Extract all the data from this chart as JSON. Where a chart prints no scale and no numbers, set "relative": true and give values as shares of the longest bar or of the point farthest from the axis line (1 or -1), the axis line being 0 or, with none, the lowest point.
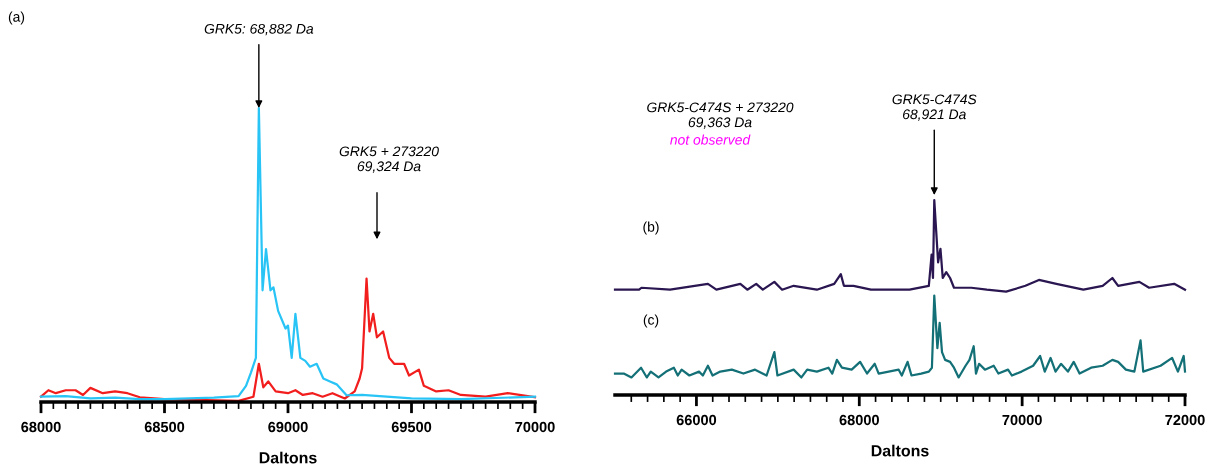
{
  "chart_data": [
    {
      "type": "line",
      "title": "(a)",
      "xlabel": "Daltons",
      "relative": true,
      "xlim": [
        68000,
        70000
      ],
      "xticks": [
        68000,
        {
          "value": 68050,
          "label": null
        },
        {
          "value": 68100,
          "label": null
        },
        {
          "value": 68150,
          "label": null
        },
        {
          "value": 68200,
          "label": null
        },
        {
          "value": 68250,
          "label": null
        },
        {
          "value": 68300,
          "label": null
        },
        {
          "value": 68350,
          "label": null
        },
        {
          "value": 68400,
          "label": null
        },
        {
          "value": 68450,
          "label": null
        },
        68500,
        {
          "value": 68550,
          "label": null
        },
        {
          "value": 68600,
          "label": null
        },
        {
          "value": 68650,
          "label": null
        },
        {
          "value": 68700,
          "label": null
        },
        {
          "value": 68750,
          "label": null
        },
        {
          "value": 68800,
          "label": null
        },
        {
          "value": 68850,
          "label": null
        },
        {
          "value": 68900,
          "label": null
        },
        {
          "value": 68950,
          "label": null
        },
        69000,
        {
          "value": 69050,
          "label": null
        },
        {
          "value": 69100,
          "label": null
        },
        {
          "value": 69150,
          "label": null
        },
        {
          "value": 69200,
          "label": null
        },
        {
          "value": 69250,
          "label": null
        },
        {
          "value": 69300,
          "label": null
        },
        {
          "value": 69350,
          "label": null
        },
        {
          "value": 69400,
          "label": null
        },
        {
          "value": 69450,
          "label": null
        },
        69500,
        {
          "value": 69550,
          "label": null
        },
        {
          "value": 69600,
          "label": null
        },
        {
          "value": 69650,
          "label": null
        },
        {
          "value": 69700,
          "label": null
        },
        {
          "value": 69750,
          "label": null
        },
        {
          "value": 69800,
          "label": null
        },
        {
          "value": 69850,
          "label": null
        },
        {
          "value": 69900,
          "label": null
        },
        {
          "value": 69950,
          "label": null
        },
        70000
      ],
      "series": [
        {
          "color": "#f21d1d",
          "x": [
            68000,
            68030,
            68060,
            68100,
            68140,
            68170,
            68200,
            68250,
            68300,
            68350,
            68400,
            68500,
            68800,
            68860,
            68882,
            68900,
            68920,
            68950,
            69000,
            69030,
            69060,
            69100,
            69140,
            69180,
            69230,
            69270,
            69290,
            69300,
            69318,
            69330,
            69345,
            69360,
            69385,
            69410,
            69430,
            69470,
            69490,
            69530,
            69550,
            69600,
            69650,
            69700,
            69800,
            69890,
            70000
          ],
          "values": [
            0.018,
            0.04,
            0.03,
            0.04,
            0.04,
            0.024,
            0.048,
            0.03,
            0.036,
            0.03,
            0.016,
            0.01,
            0.004,
            0.018,
            0.13,
            0.05,
            0.07,
            0.036,
            0.03,
            0.04,
            0.024,
            0.03,
            0.018,
            0.03,
            0.012,
            0.036,
            0.08,
            0.115,
            0.42,
            0.24,
            0.3,
            0.22,
            0.24,
            0.15,
            0.13,
            0.13,
            0.09,
            0.11,
            0.055,
            0.036,
            0.04,
            0.024,
            0.018,
            0.03,
            0.016
          ]
        },
        {
          "color": "#29c4f6",
          "x": [
            68000,
            68100,
            68200,
            68300,
            68400,
            68500,
            68600,
            68700,
            68800,
            68830,
            68850,
            68870,
            68882,
            68897,
            68911,
            68929,
            68941,
            68960,
            68990,
            69000,
            69015,
            69030,
            69050,
            69070,
            69089,
            69116,
            69143,
            69170,
            69197,
            69237,
            69300,
            69400,
            69500,
            69700,
            70000
          ],
          "values": [
            0.018,
            0.02,
            0.012,
            0.015,
            0.01,
            0.01,
            0.012,
            0.015,
            0.02,
            0.055,
            0.1,
            0.15,
            1,
            0.38,
            0.52,
            0.38,
            0.39,
            0.31,
            0.25,
            0.26,
            0.15,
            0.3,
            0.15,
            0.14,
            0.12,
            0.13,
            0.08,
            0.07,
            0.06,
            0.023,
            0.024,
            0.018,
            0.012,
            0.01,
            0.018
          ]
        }
      ],
      "annotations": [
        {
          "text": "GRK5: 68,882 Da",
          "x": 68882,
          "y": 1
        },
        "GRK5 + 273220\n69,324 Da"
      ]
    },
    {
      "type": "line",
      "xlabel": "Daltons",
      "relative": true,
      "xlim": [
        65000,
        72000
      ],
      "xticks": [
        {
          "value": 65200,
          "label": null
        },
        {
          "value": 65400,
          "label": null
        },
        {
          "value": 65600,
          "label": null
        },
        {
          "value": 65800,
          "label": null
        },
        66000,
        {
          "value": 66200,
          "label": null
        },
        {
          "value": 66400,
          "label": null
        },
        {
          "value": 66600,
          "label": null
        },
        {
          "value": 66800,
          "label": null
        },
        {
          "value": 67000,
          "label": null
        },
        {
          "value": 67200,
          "label": null
        },
        {
          "value": 67400,
          "label": null
        },
        {
          "value": 67600,
          "label": null
        },
        {
          "value": 67800,
          "label": null
        },
        68000,
        {
          "value": 68200,
          "label": null
        },
        {
          "value": 68400,
          "label": null
        },
        {
          "value": 68600,
          "label": null
        },
        {
          "value": 68800,
          "label": null
        },
        {
          "value": 69000,
          "label": null
        },
        {
          "value": 69200,
          "label": null
        },
        {
          "value": 69400,
          "label": null
        },
        {
          "value": 69600,
          "label": null
        },
        {
          "value": 69800,
          "label": null
        },
        70000,
        {
          "value": 70200,
          "label": null
        },
        {
          "value": 70400,
          "label": null
        },
        {
          "value": 70600,
          "label": null
        },
        {
          "value": 70800,
          "label": null
        },
        {
          "value": 71000,
          "label": null
        },
        {
          "value": 71200,
          "label": null
        },
        {
          "value": 71400,
          "label": null
        },
        {
          "value": 71600,
          "label": null
        },
        {
          "value": 71800,
          "label": null
        },
        72000
      ],
      "series": [
        {
          "color": "#2a1650",
          "x": [
            65000,
            65296,
            65325,
            65676,
            66141,
            66245,
            66539,
            66625,
            66734,
            66815,
            66957,
            67052,
            67194,
            67479,
            67692,
            67773,
            67811,
            67929,
            68143,
            68475,
            68617,
            68854,
            68888,
            68905,
            68921,
            68949,
            68968,
            68997,
            69025,
            69068,
            69115,
            69163,
            69376,
            69566,
            69803,
            70040,
            70206,
            70420,
            70752,
            70989,
            71108,
            71179,
            71440,
            71559,
            71867,
            72000
          ],
          "values": [
            0.54,
            0.54,
            0.55,
            0.54,
            0.57,
            0.54,
            0.57,
            0.54,
            0.57,
            0.54,
            0.58,
            0.54,
            0.56,
            0.54,
            0.57,
            0.62,
            0.56,
            0.56,
            0.54,
            0.54,
            0.54,
            0.56,
            0.72,
            0.6,
            1,
            0.81,
            0.68,
            0.75,
            0.6,
            0.63,
            0.6,
            0.55,
            0.55,
            0.54,
            0.53,
            0.56,
            0.59,
            0.57,
            0.54,
            0.56,
            0.6,
            0.56,
            0.58,
            0.55,
            0.57,
            0.54
          ]
        },
        {
          "color": "#137077",
          "x": [
            65000,
            65107,
            65202,
            65320,
            65391,
            65439,
            65534,
            65628,
            65723,
            65771,
            65818,
            65913,
            66032,
            66079,
            66141,
            66198,
            66293,
            66435,
            66577,
            66720,
            66862,
            66957,
            66995,
            67194,
            67289,
            67360,
            67479,
            67621,
            67668,
            67725,
            67787,
            67906,
            68010,
            68095,
            68190,
            68238,
            68484,
            68522,
            68593,
            68641,
            68760,
            68854,
            68892,
            68921,
            68959,
            68987,
            69016,
            69054,
            69115,
            69163,
            69220,
            69305,
            69353,
            69405,
            69433,
            69471,
            69543,
            69651,
            69708,
            69827,
            69874,
            69993,
            70135,
            70221,
            70278,
            70349,
            70410,
            70477,
            70562,
            70633,
            70705,
            70847,
            70989,
            71108,
            71179,
            71274,
            71378,
            71454,
            71487,
            71700,
            71842,
            71913,
            71984,
            72000
          ],
          "values": [
            0.11,
            0.11,
            0.09,
            0.14,
            0.09,
            0.12,
            0.09,
            0.12,
            0.14,
            0.1,
            0.13,
            0.1,
            0.12,
            0.1,
            0.15,
            0.1,
            0.12,
            0.13,
            0.11,
            0.13,
            0.1,
            0.22,
            0.1,
            0.13,
            0.09,
            0.13,
            0.12,
            0.14,
            0.11,
            0.18,
            0.14,
            0.13,
            0.17,
            0.11,
            0.16,
            0.11,
            0.13,
            0.1,
            0.17,
            0.1,
            0.11,
            0.12,
            0.14,
            0.51,
            0.24,
            0.37,
            0.22,
            0.18,
            0.17,
            0.14,
            0.09,
            0.15,
            0.18,
            0.25,
            0.11,
            0.16,
            0.13,
            0.15,
            0.11,
            0.13,
            0.1,
            0.12,
            0.15,
            0.2,
            0.12,
            0.19,
            0.12,
            0.16,
            0.12,
            0.17,
            0.11,
            0.14,
            0.15,
            0.18,
            0.17,
            0.13,
            0.12,
            0.28,
            0.12,
            0.15,
            0.19,
            0.12,
            0.2,
            0.12
          ]
        }
      ],
      "annotations": [
        {
          "text": "GRK5-C474S\n68,921 Da",
          "x": 68921,
          "y": 1
        },
        "GRK5-C474S + 273220\n69,363 Da",
        "not observed",
        "(b)",
        "(c)"
      ]
    }
  ]
}
